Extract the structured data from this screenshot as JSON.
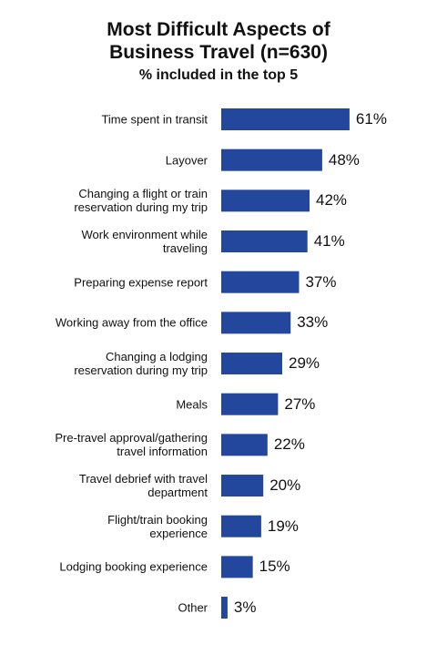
{
  "chart_data": {
    "type": "bar",
    "orientation": "horizontal",
    "title": "Most Difficult Aspects of\nBusiness Travel (n=630)",
    "subtitle": "% included in the top 5",
    "categories": [
      "Time spent in transit",
      "Layover",
      "Changing a flight or train\nreservation during my trip",
      "Work environment while\ntraveling",
      "Preparing expense report",
      "Working away from the office",
      "Changing a lodging\nreservation during my trip",
      "Meals",
      "Pre-travel approval/gathering\ntravel information",
      "Travel debrief with travel\ndepartment",
      "Flight/train booking\nexperience",
      "Lodging booking experience",
      "Other"
    ],
    "values": [
      61,
      48,
      42,
      41,
      37,
      33,
      29,
      27,
      22,
      20,
      19,
      15,
      3
    ],
    "value_labels": [
      "61%",
      "48%",
      "42%",
      "41%",
      "37%",
      "33%",
      "29%",
      "27%",
      "22%",
      "20%",
      "19%",
      "15%",
      "3%"
    ],
    "color": "#22479c"
  }
}
